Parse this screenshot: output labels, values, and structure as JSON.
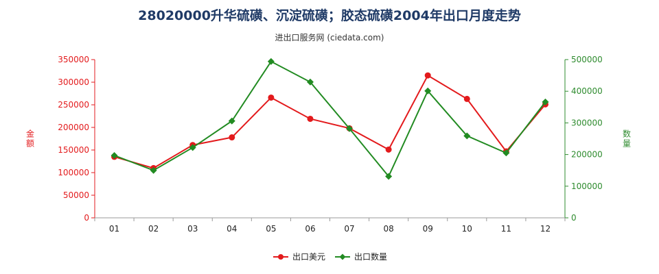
{
  "title": "28020000升华硫磺、沉淀硫磺；胶态硫磺2004年出口月度走势",
  "subtitle": "进出口服务网 (ciedata.com)",
  "colors": {
    "series_amount": "#e31a1c",
    "series_qty": "#228b22",
    "axis_left": "#e31a1c",
    "axis_right": "#2e8b2e"
  },
  "chart_data": {
    "type": "line",
    "title": "28020000升华硫磺、沉淀硫磺；胶态硫磺2004年出口月度走势",
    "categories": [
      "01",
      "02",
      "03",
      "04",
      "05",
      "06",
      "07",
      "08",
      "09",
      "10",
      "11",
      "12"
    ],
    "series": [
      {
        "name": "出口美元",
        "axis": "left",
        "values": [
          135000,
          110000,
          161000,
          178000,
          266000,
          219000,
          198000,
          151000,
          315000,
          263000,
          147000,
          251000
        ]
      },
      {
        "name": "出口数量",
        "axis": "right",
        "values": [
          197000,
          150000,
          222000,
          306000,
          494000,
          429000,
          282000,
          131000,
          401000,
          259000,
          205000,
          366000
        ]
      }
    ],
    "ylabel": "金额",
    "ylabel_right": "数量",
    "ylim": [
      0,
      350000
    ],
    "ylim_right": [
      0,
      500000
    ],
    "yticks": [
      "0",
      "50000",
      "100000",
      "150000",
      "200000",
      "250000",
      "300000",
      "350000"
    ],
    "yticks_right": [
      "0",
      "100000",
      "200000",
      "300000",
      "400000",
      "500000"
    ],
    "grid": false,
    "legend_position": "bottom-center"
  }
}
